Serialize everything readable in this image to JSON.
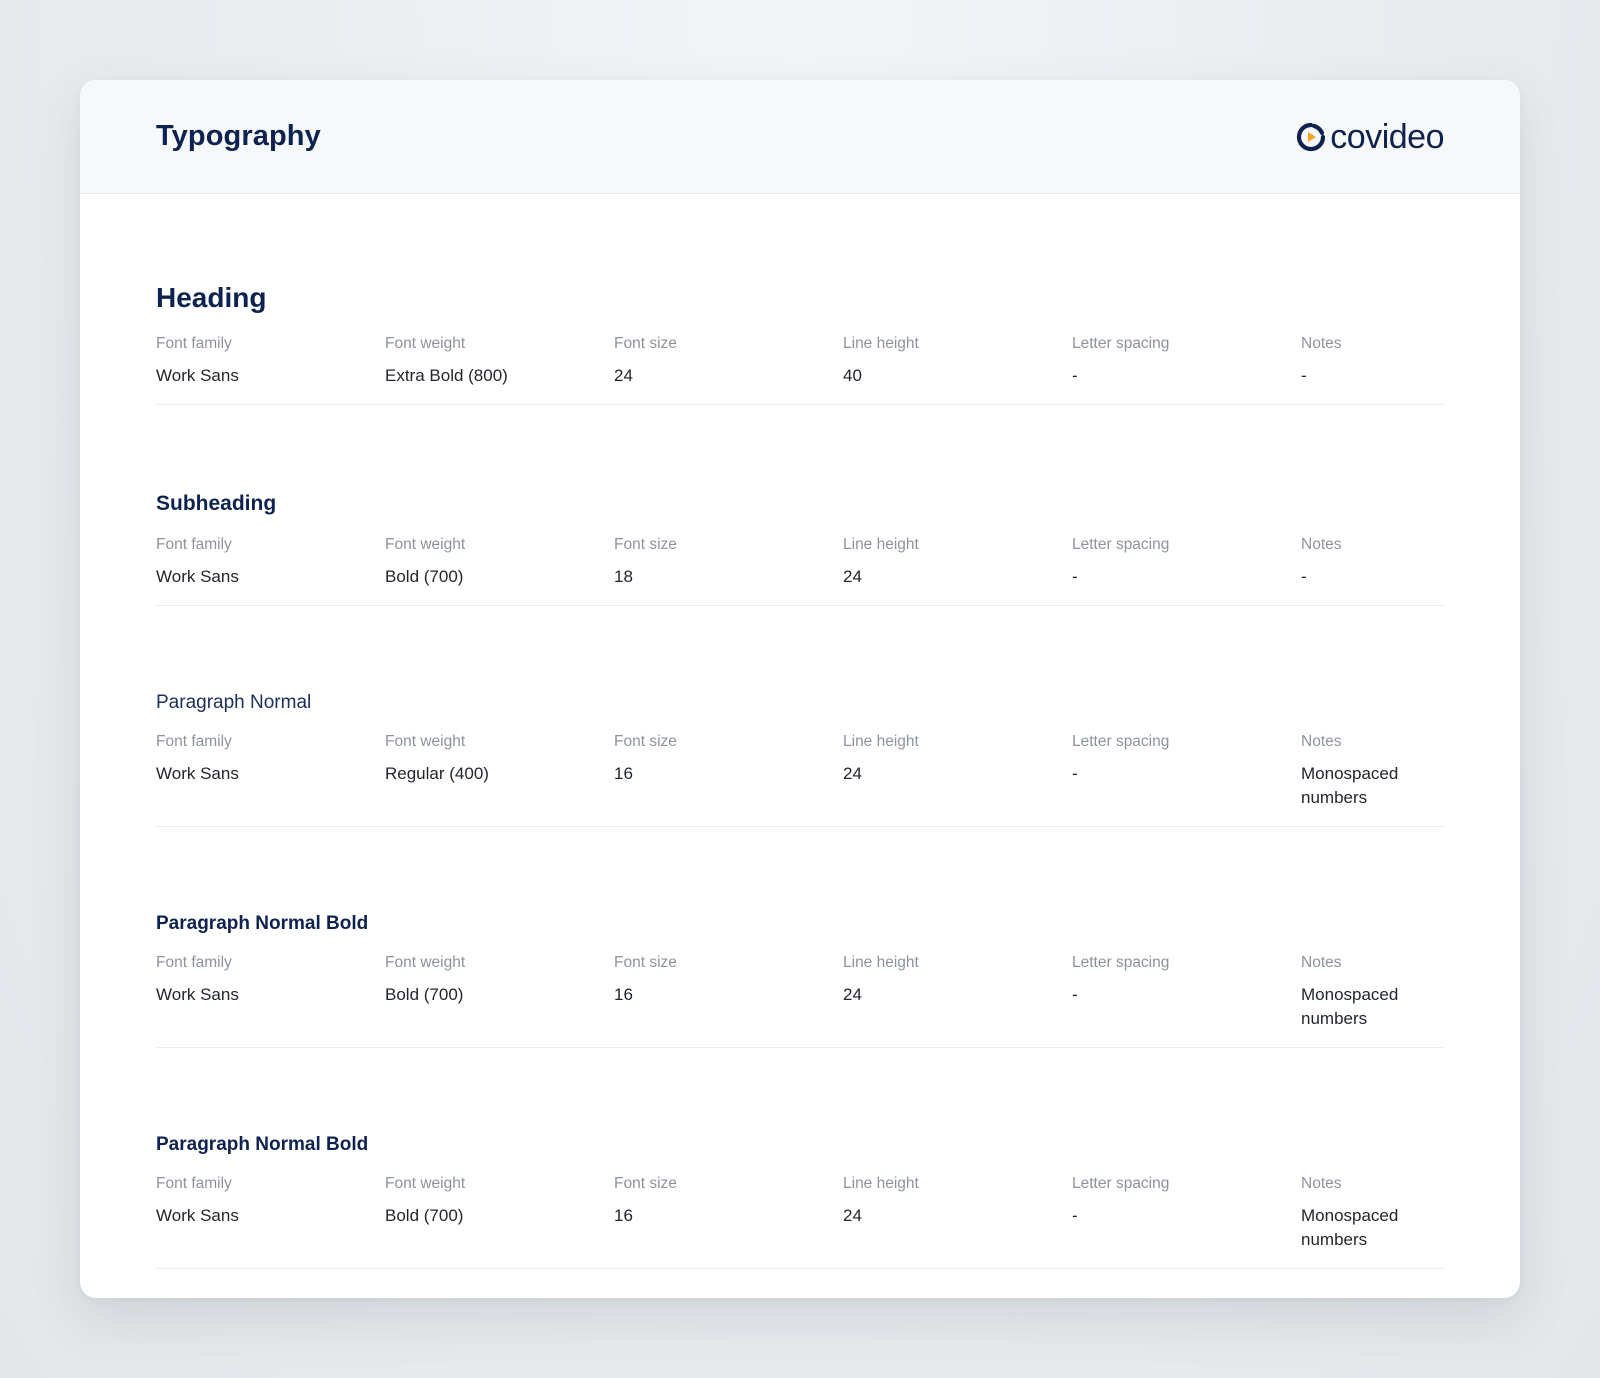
{
  "header": {
    "title": "Typography",
    "logo_text": "covideo",
    "logo_icon": "covideo-play-mark-icon",
    "colors": {
      "navy": "#0e2250",
      "accent": "#f5a623"
    }
  },
  "columns": [
    "Font family",
    "Font weight",
    "Font size",
    "Line height",
    "Letter spacing",
    "Notes"
  ],
  "styles": [
    {
      "name": "Heading",
      "values": [
        "Work Sans",
        "Extra Bold (800)",
        "24",
        "40",
        "-",
        "-"
      ]
    },
    {
      "name": "Subheading",
      "values": [
        "Work Sans",
        "Bold (700)",
        "18",
        "24",
        "-",
        "-"
      ]
    },
    {
      "name": "Paragraph Normal",
      "values": [
        "Work Sans",
        "Regular (400)",
        "16",
        "24",
        "-",
        "Monospaced numbers"
      ]
    },
    {
      "name": "Paragraph Normal Bold",
      "values": [
        "Work Sans",
        "Bold (700)",
        "16",
        "24",
        "-",
        "Monospaced numbers"
      ]
    },
    {
      "name": "Paragraph Normal Bold",
      "values": [
        "Work Sans",
        "Bold (700)",
        "16",
        "24",
        "-",
        "Monospaced numbers"
      ]
    }
  ]
}
